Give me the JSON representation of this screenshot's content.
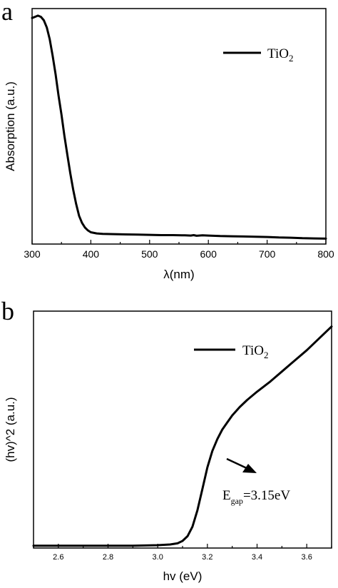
{
  "chart_data": [
    {
      "panel_label": "a",
      "type": "line",
      "xlabel": "λ(nm)",
      "ylabel": "Absorption (a.u.)",
      "xlim": [
        300,
        800
      ],
      "ylim": [
        0,
        1
      ],
      "x_ticks": [
        300,
        400,
        500,
        600,
        700,
        800
      ],
      "y_ticks": [],
      "legend": {
        "placement": "top-right",
        "entries": [
          {
            "text": "TiO",
            "subscript": "2"
          }
        ]
      },
      "series": [
        {
          "name": "TiO2",
          "x": [
            300,
            305,
            310,
            315,
            320,
            325,
            330,
            335,
            340,
            345,
            350,
            355,
            360,
            365,
            370,
            375,
            380,
            385,
            390,
            395,
            400,
            410,
            420,
            440,
            460,
            480,
            500,
            520,
            540,
            560,
            570,
            575,
            580,
            590,
            600,
            620,
            640,
            660,
            680,
            700,
            720,
            740,
            760,
            780,
            800
          ],
          "y": [
            0.96,
            0.965,
            0.97,
            0.965,
            0.95,
            0.92,
            0.87,
            0.8,
            0.72,
            0.63,
            0.55,
            0.46,
            0.38,
            0.3,
            0.23,
            0.17,
            0.12,
            0.09,
            0.07,
            0.058,
            0.05,
            0.045,
            0.043,
            0.042,
            0.041,
            0.04,
            0.039,
            0.038,
            0.038,
            0.037,
            0.036,
            0.038,
            0.035,
            0.037,
            0.036,
            0.034,
            0.033,
            0.032,
            0.031,
            0.03,
            0.028,
            0.027,
            0.025,
            0.024,
            0.023
          ]
        }
      ]
    },
    {
      "panel_label": "b",
      "type": "line",
      "xlabel": "hv (eV)",
      "ylabel": "(hv)^2 (a.u.)",
      "xlim": [
        2.5,
        3.7
      ],
      "ylim": [
        0,
        1
      ],
      "x_ticks": [
        "2.6",
        "2.8",
        "3.0",
        "3.2",
        "3.4",
        "3.6"
      ],
      "y_ticks": [],
      "legend": {
        "placement": "top-right",
        "entries": [
          {
            "text": "TiO",
            "subscript": "2"
          }
        ]
      },
      "annotation": {
        "text_prefix": "E",
        "subscript": "gap",
        "text_suffix": "=3.15eV",
        "arrow": true
      },
      "series": [
        {
          "name": "TiO2",
          "x": [
            2.5,
            2.6,
            2.7,
            2.8,
            2.9,
            3.0,
            3.05,
            3.08,
            3.1,
            3.12,
            3.14,
            3.16,
            3.18,
            3.2,
            3.22,
            3.24,
            3.26,
            3.28,
            3.3,
            3.33,
            3.36,
            3.4,
            3.45,
            3.5,
            3.55,
            3.6,
            3.65,
            3.7
          ],
          "y": [
            0.01,
            0.01,
            0.01,
            0.01,
            0.01,
            0.012,
            0.015,
            0.02,
            0.03,
            0.05,
            0.09,
            0.16,
            0.25,
            0.34,
            0.41,
            0.46,
            0.5,
            0.53,
            0.56,
            0.595,
            0.625,
            0.66,
            0.7,
            0.745,
            0.79,
            0.835,
            0.885,
            0.935
          ]
        }
      ]
    }
  ]
}
